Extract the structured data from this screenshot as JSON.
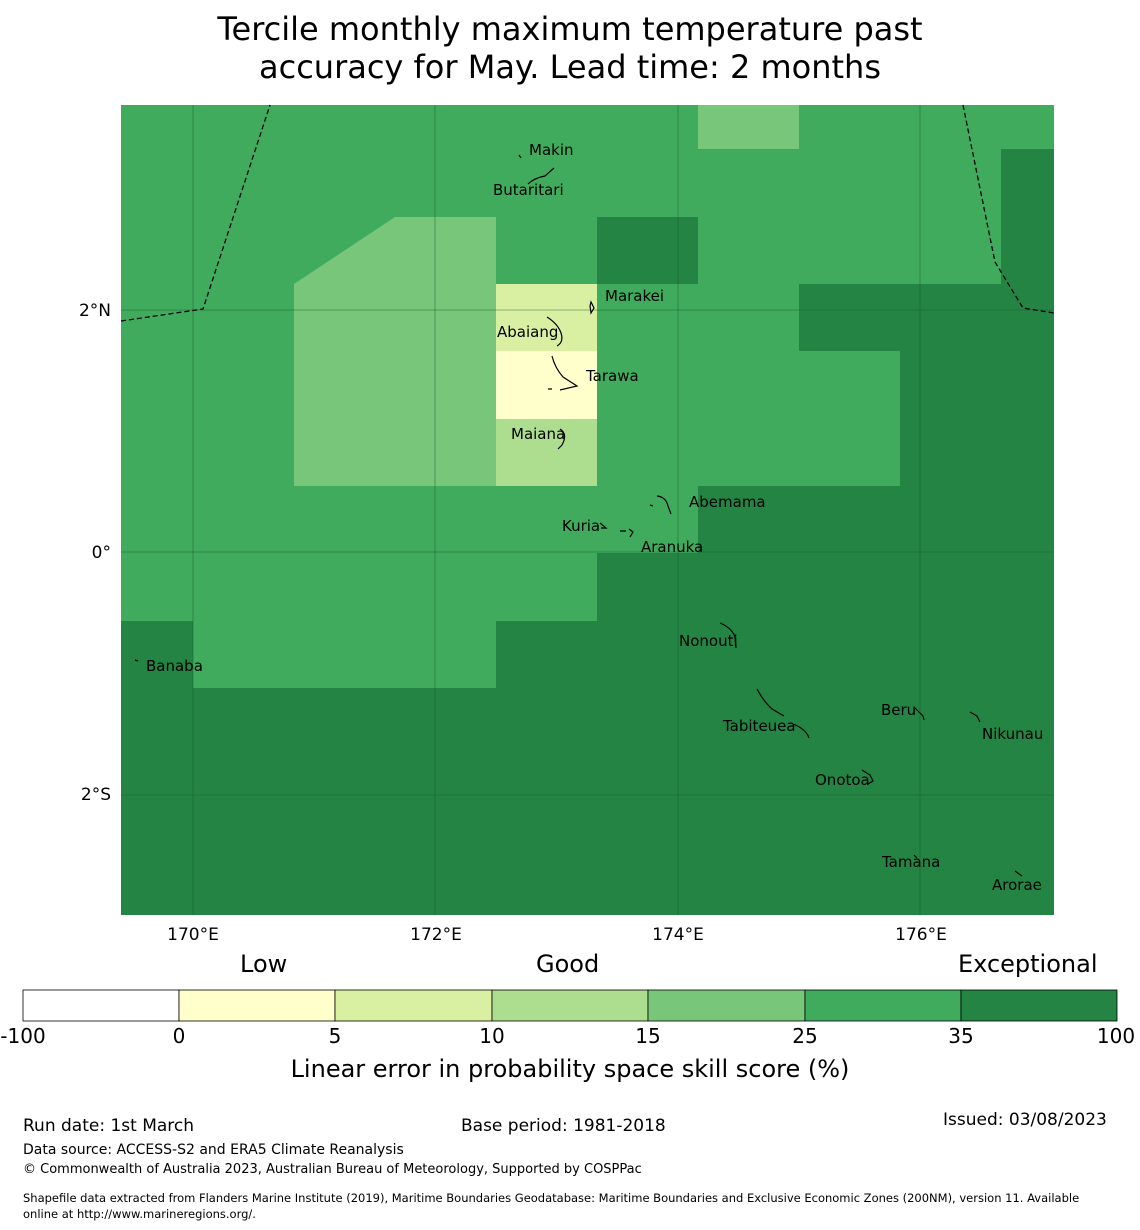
{
  "title": {
    "line1": "Tercile monthly maximum temperature past",
    "line2": "accuracy for May. Lead time: 2 months"
  },
  "map": {
    "lat_ticks": [
      "2°N",
      "0°",
      "2°S"
    ],
    "lon_ticks": [
      "170°E",
      "172°E",
      "174°E",
      "176°E"
    ],
    "islands": {
      "makin": "Makin",
      "butaritari": "Butaritari",
      "marakei": "Marakei",
      "abaiang": "Abaiang",
      "tarawa": "Tarawa",
      "maiana": "Maiana",
      "abemama": "Abemama",
      "kuria": "Kuria",
      "aranuka": "Aranuka",
      "nonouti": "Nonouti",
      "banaba": "Banaba",
      "beru": "Beru",
      "tabiteuea": "Tabiteuea",
      "nikunau": "Nikunau",
      "onotoa": "Onotoa",
      "tamana": "Tamana",
      "arorae": "Arorae"
    },
    "colors": {
      "lt0": "#ffffff",
      "c0_5": "#ffffcc",
      "c5_10": "#d9f0a3",
      "c10_15": "#addd8e",
      "c15_25": "#78c679",
      "c25_35": "#41ab5d",
      "c35_100": "#238443"
    }
  },
  "legend": {
    "categories": {
      "low": "Low",
      "good": "Good",
      "exceptional": "Exceptional"
    },
    "ticks": [
      "-100",
      "0",
      "5",
      "10",
      "15",
      "25",
      "35",
      "100"
    ],
    "title": "Linear error in probability space skill score (%)"
  },
  "footer": {
    "run_date": "Run date: 1st March",
    "base_period": "Base period: 1981-2018",
    "issued": "Issued: 03/08/2023",
    "data_source": "Data source: ACCESS-S2 and ERA5 Climate Reanalysis",
    "copyright": "© Commonwealth of Australia 2023, Australian Bureau of Meteorology, Supported by COSPPac",
    "shapefile_line1": "Shapefile data extracted from Flanders Marine Institute (2019), Maritime Boundaries Geodatabase: Maritime Boundaries and Exclusive Economic Zones (200NM), version 11. Available",
    "shapefile_line2": "online at http://www.marineregions.org/."
  }
}
